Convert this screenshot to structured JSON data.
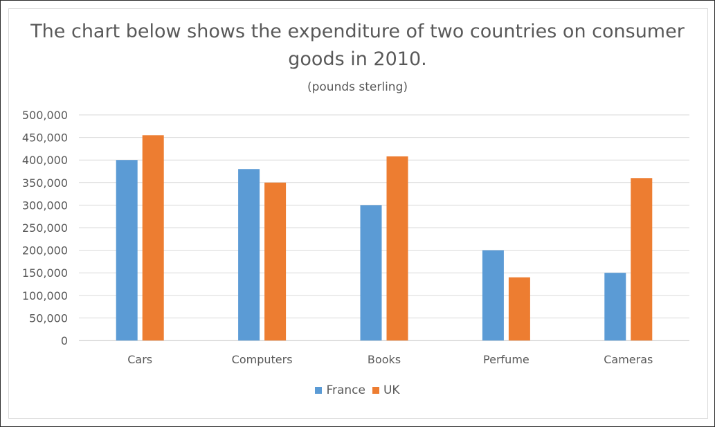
{
  "chart_data": {
    "type": "bar",
    "title": "The chart below shows the expenditure of two countries on consumer goods in 2010.",
    "subtitle": "(pounds sterling)",
    "xlabel": "",
    "ylabel": "",
    "categories": [
      "Cars",
      "Computers",
      "Books",
      "Perfume",
      "Cameras"
    ],
    "series": [
      {
        "name": "France",
        "color": "#5b9bd5",
        "values": [
          400000,
          380000,
          300000,
          200000,
          150000
        ]
      },
      {
        "name": "UK",
        "color": "#ed7d31",
        "values": [
          455000,
          350000,
          408000,
          140000,
          360000
        ]
      }
    ],
    "ylim": [
      0,
      500000
    ],
    "yticks": [
      "0",
      "50,000",
      "100,000",
      "150,000",
      "200,000",
      "250,000",
      "300,000",
      "350,000",
      "400,000",
      "450,000",
      "500,000"
    ],
    "grid": true,
    "legend_position": "bottom"
  }
}
